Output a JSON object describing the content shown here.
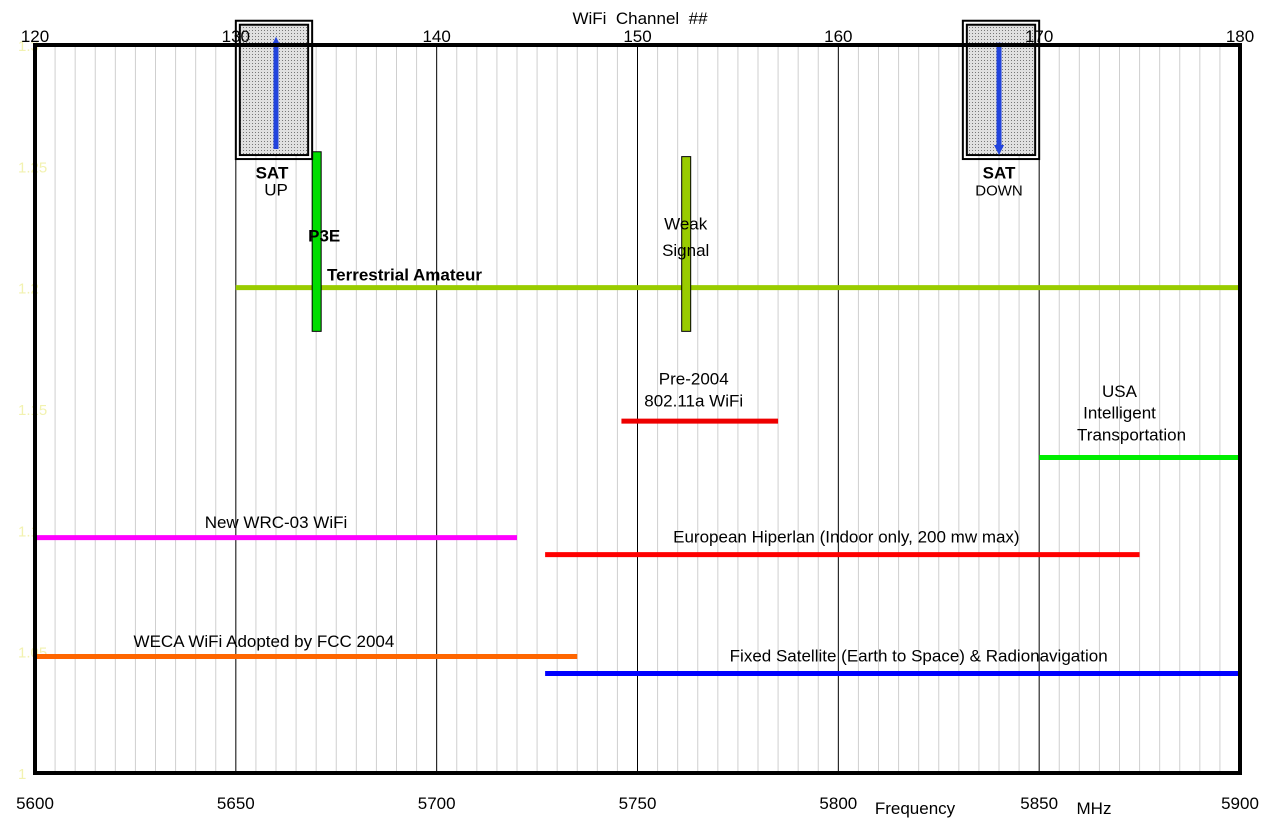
{
  "chart_data": {
    "type": "bar",
    "top_axis_label": "WiFi  Channel  ##",
    "xlabel": "Frequency",
    "xunit": "MHz",
    "xlim": [
      5600,
      5900
    ],
    "ylim": [
      1.0,
      1.3
    ],
    "x_ticks": [
      5600,
      5650,
      5700,
      5750,
      5800,
      5850,
      5900
    ],
    "channel_ticks": [
      120,
      130,
      140,
      150,
      160,
      170,
      180
    ],
    "y_ticks": [
      "1.3",
      "1.25",
      "1.2",
      "1.15",
      "1.1",
      "1.05",
      "1"
    ],
    "minor_grid_step_mhz": 5,
    "major_grid_step_mhz": 50,
    "allocations": [
      {
        "label": "Terrestrial Amateur",
        "x_start": 5650,
        "x_end": 5900,
        "y": 1.2,
        "color": "#99cc00",
        "label_x": 5692,
        "label_y": 1.203,
        "bold": true
      },
      {
        "label": "New WRC-03 WiFi",
        "x_start": 5600,
        "x_end": 5720,
        "y": 1.097,
        "color": "#ff00ff",
        "label_x": 5660,
        "label_y": 1.101,
        "bold": false
      },
      {
        "label": "European Hiperlan (Indoor only, 200 mw max)",
        "x_start": 5727,
        "x_end": 5875,
        "y": 1.09,
        "color": "#ff0000",
        "label_x": 5802,
        "label_y": 1.095,
        "bold": false
      },
      {
        "label": "WECA WiFi Adopted by FCC 2004",
        "x_start": 5600,
        "x_end": 5735,
        "y": 1.048,
        "color": "#ff6600",
        "label_x": 5657,
        "label_y": 1.052,
        "bold": false
      },
      {
        "label": "Fixed Satellite (Earth to Space) & Radionavigation",
        "x_start": 5727,
        "x_end": 5900,
        "y": 1.041,
        "color": "#0000ff",
        "label_x": 5820,
        "label_y": 1.046,
        "bold": false
      },
      {
        "label": "USA",
        "x_start": 5850,
        "x_end": 5900,
        "y": 1.13,
        "color": "#00ee00",
        "label_x": 5870,
        "label_y": 1.155,
        "bold": false
      },
      {
        "label": "Pre-2004",
        "x_start": 5746,
        "x_end": 5785,
        "y": 1.145,
        "color": "#ee0000",
        "label_x": 5764,
        "label_y": 1.16,
        "bold": false
      }
    ],
    "text_labels": [
      {
        "text": "Intelligent",
        "x": 5870,
        "y": 1.146,
        "bold": false
      },
      {
        "text": "Transportation",
        "x": 5873,
        "y": 1.137,
        "bold": false
      },
      {
        "text": "802.11a WiFi",
        "x": 5764,
        "y": 1.151,
        "bold": false
      },
      {
        "text": "Weak",
        "x": 5762,
        "y": 1.224,
        "bold": false
      },
      {
        "text": "Signal",
        "x": 5762,
        "y": 1.213,
        "bold": false
      },
      {
        "text": "P3E",
        "x": 5672,
        "y": 1.219,
        "bold": true
      },
      {
        "text": "SAT",
        "x": 5659,
        "y": 1.245,
        "bold": true
      },
      {
        "text": "UP",
        "x": 5660,
        "y": 1.238,
        "bold": false,
        "small": false
      },
      {
        "text": "SAT",
        "x": 5840,
        "y": 1.245,
        "bold": true
      },
      {
        "text": "DOWN",
        "x": 5840,
        "y": 1.238,
        "bold": false,
        "small": true
      }
    ],
    "vertical_bands": [
      {
        "name": "P3E",
        "x": 5670,
        "y_start": 1.182,
        "y_end": 1.256,
        "color": "#00dd00"
      },
      {
        "name": "Weak Signal",
        "x": 5762,
        "y_start": 1.182,
        "y_end": 1.254,
        "color": "#99cc00"
      }
    ],
    "sat_boxes": [
      {
        "name": "SAT UP",
        "x_start": 5650,
        "x_end": 5669,
        "y_start": 1.253,
        "y_end": 1.31,
        "arrow": "up"
      },
      {
        "name": "SAT DOWN",
        "x_start": 5831,
        "x_end": 5850,
        "y_start": 1.253,
        "y_end": 1.31,
        "arrow": "down"
      }
    ]
  }
}
